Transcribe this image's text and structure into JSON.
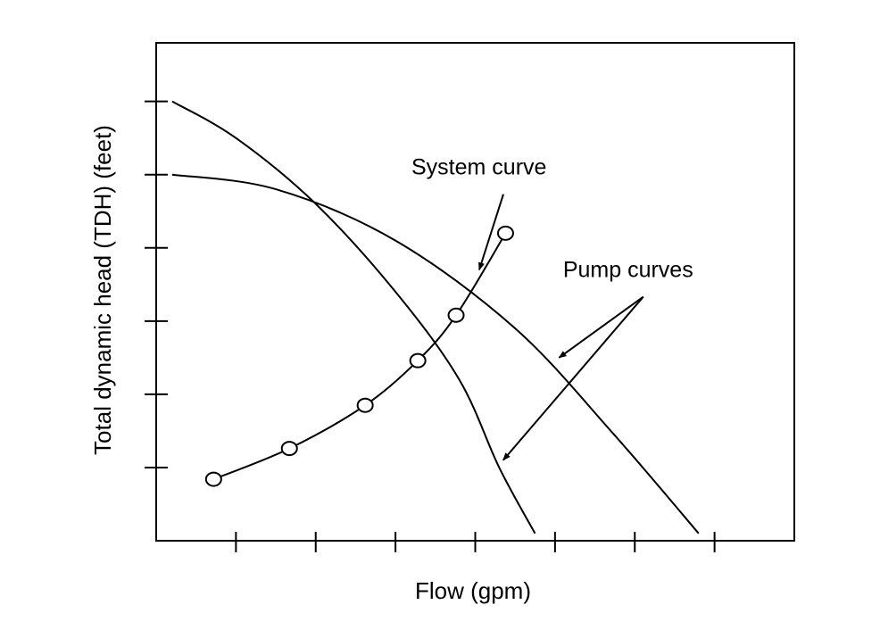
{
  "chart_data": {
    "type": "line",
    "xlabel": "Flow (gpm)",
    "ylabel": "Total dynamic head (TDH) (feet)",
    "xlim": [
      0,
      8
    ],
    "ylim": [
      0,
      6.8
    ],
    "x_ticks": [
      1,
      2,
      3,
      4,
      5,
      6,
      7
    ],
    "y_ticks": [
      1,
      2,
      3,
      4,
      5,
      6
    ],
    "tick_labels_shown": false,
    "grid": false,
    "legend": "none",
    "series": [
      {
        "name": "System curve",
        "points": [
          [
            0.72,
            0.84
          ],
          [
            1.67,
            1.26
          ],
          [
            2.62,
            1.85
          ],
          [
            3.28,
            2.46
          ],
          [
            3.76,
            3.08
          ],
          [
            4.38,
            4.2
          ]
        ],
        "markers": "open-circle"
      },
      {
        "points": [
          [
            0.2,
            6.0
          ],
          [
            1.0,
            5.5
          ],
          [
            2.0,
            4.6
          ],
          [
            3.0,
            3.4
          ],
          [
            3.8,
            2.2
          ],
          [
            4.3,
            1.0
          ],
          [
            4.75,
            0.1
          ]
        ],
        "markers": "none"
      },
      {
        "points": [
          [
            0.2,
            5.0
          ],
          [
            1.5,
            4.8
          ],
          [
            3.0,
            4.1
          ],
          [
            4.5,
            2.9
          ],
          [
            5.7,
            1.5
          ],
          [
            6.8,
            0.1
          ]
        ],
        "markers": "none"
      }
    ],
    "annotations": [
      {
        "text": "System curve",
        "at": [
          3.2,
          5.0
        ],
        "arrow_to": [
          4.05,
          3.7
        ]
      },
      {
        "text": "Pump curves",
        "at": [
          5.1,
          3.6
        ],
        "arrows_to": [
          [
            5.05,
            2.5
          ],
          [
            4.35,
            1.1
          ]
        ]
      }
    ]
  },
  "colors": {
    "line": "#000000",
    "background": "#ffffff"
  }
}
